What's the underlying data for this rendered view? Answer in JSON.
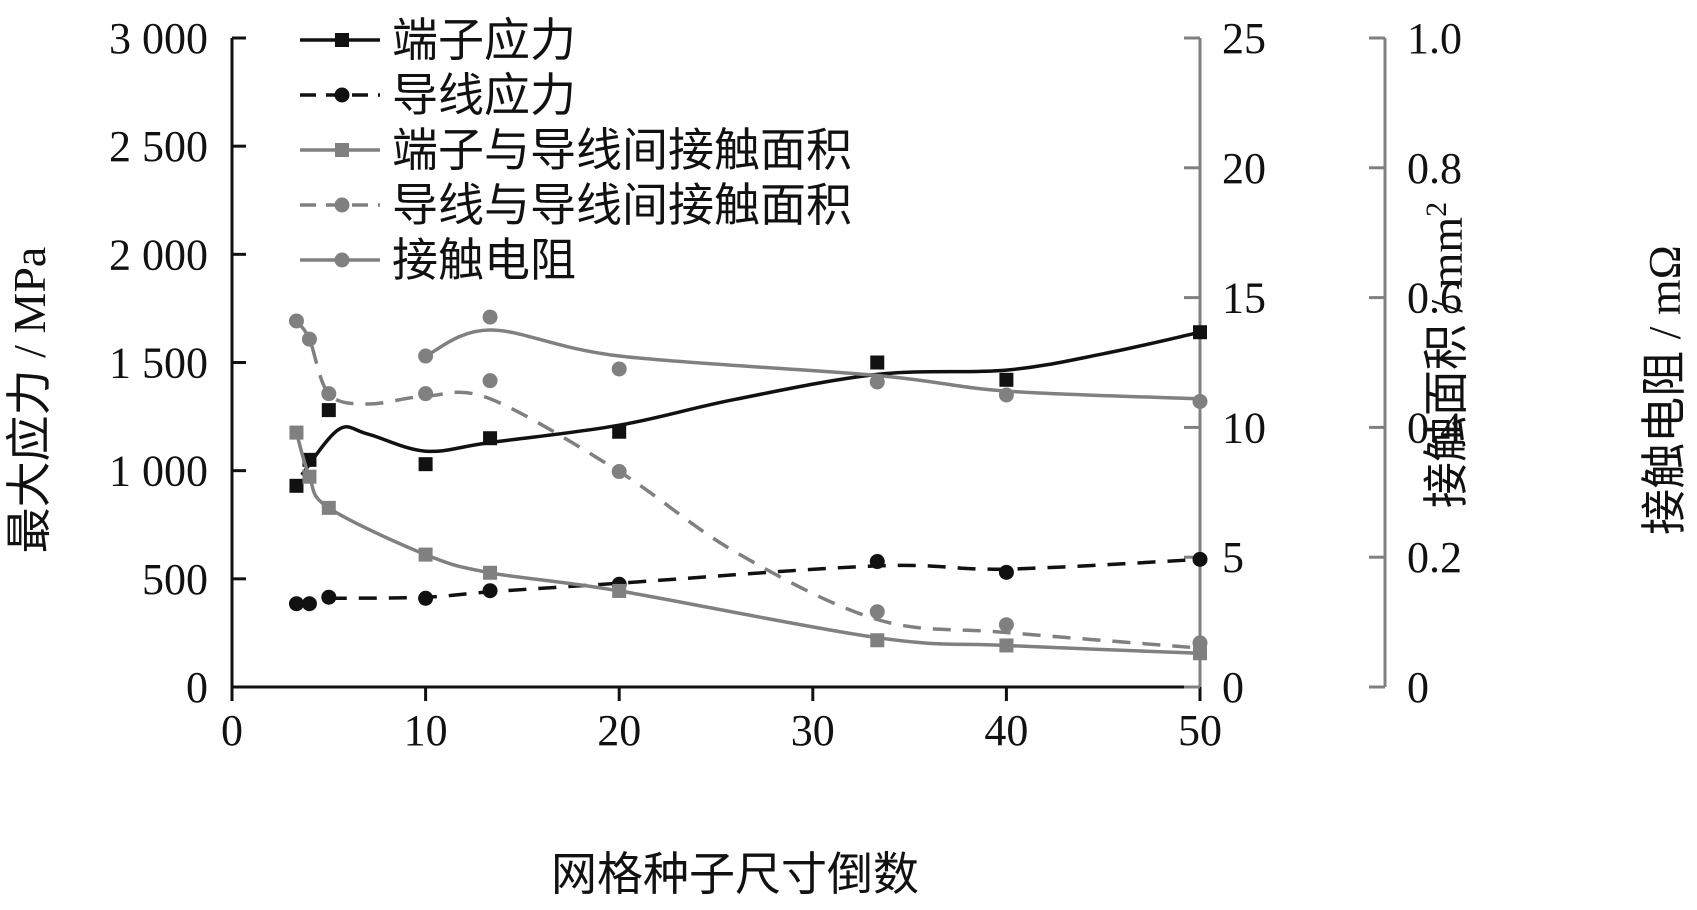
{
  "chart_data": {
    "type": "line",
    "xlabel": "网格种子尺寸倒数",
    "x_ticks": [
      "0",
      "10",
      "20",
      "30",
      "40",
      "50"
    ],
    "xlim": [
      0,
      50
    ],
    "axes": {
      "stress": {
        "label": "最大应力 / MPa",
        "ylim": [
          0,
          3000
        ],
        "ticks": [
          0,
          500,
          1000,
          1500,
          2000,
          2500,
          3000
        ],
        "tick_labels": [
          "0",
          "500",
          "1 000",
          "1 500",
          "2 000",
          "2 500",
          "3 000"
        ],
        "color": "#111111"
      },
      "area": {
        "label": "接触面积 / mm2",
        "ylim": [
          0,
          25
        ],
        "ticks": [
          0,
          5,
          10,
          15,
          20,
          25
        ],
        "tick_labels": [
          "0",
          "5",
          "10",
          "15",
          "20",
          "25"
        ],
        "color": "#808080"
      },
      "resistance": {
        "label": "接触电阻 / mΩ",
        "ylim": [
          0,
          1.0
        ],
        "ticks": [
          0,
          0.2,
          0.4,
          0.6,
          0.8,
          1.0
        ],
        "tick_labels": [
          "0",
          "0.2",
          "0.4",
          "0.6",
          "0.8",
          "1.0"
        ],
        "color": "#808080"
      }
    },
    "series": [
      {
        "name": "端子应力",
        "axis": "stress",
        "color": "#111111",
        "dash": false,
        "marker": "square",
        "points": [
          [
            3.33,
            930
          ],
          [
            4,
            1050
          ],
          [
            5,
            1280
          ],
          [
            10,
            1030
          ],
          [
            13.33,
            1150
          ],
          [
            20,
            1180
          ],
          [
            33.33,
            1500
          ],
          [
            40,
            1420
          ],
          [
            50,
            1640
          ]
        ],
        "curve": [
          [
            3.6,
            980
          ],
          [
            5.5,
            1190
          ],
          [
            7,
            1170
          ],
          [
            10,
            1090
          ],
          [
            13.33,
            1130
          ],
          [
            20,
            1210
          ],
          [
            26,
            1330
          ],
          [
            33.33,
            1445
          ],
          [
            40,
            1465
          ],
          [
            45,
            1540
          ],
          [
            50,
            1640
          ]
        ]
      },
      {
        "name": "导线应力",
        "axis": "stress",
        "color": "#111111",
        "dash": true,
        "marker": "circle",
        "points": [
          [
            3.33,
            385
          ],
          [
            4,
            385
          ],
          [
            5,
            415
          ],
          [
            10,
            410
          ],
          [
            13.33,
            445
          ],
          [
            20,
            475
          ],
          [
            33.33,
            580
          ],
          [
            40,
            530
          ],
          [
            50,
            590
          ]
        ],
        "curve": [
          [
            5,
            410
          ],
          [
            10,
            415
          ],
          [
            13.33,
            440
          ],
          [
            20,
            480
          ],
          [
            33.33,
            560
          ],
          [
            40,
            545
          ],
          [
            50,
            590
          ]
        ]
      },
      {
        "name": "端子与导线间接触面积",
        "axis": "area",
        "color": "#808080",
        "dash": false,
        "marker": "square",
        "points": [
          [
            3.33,
            9.8
          ],
          [
            4,
            8.1
          ],
          [
            5,
            6.9
          ],
          [
            10,
            5.1
          ],
          [
            13.33,
            4.4
          ],
          [
            20,
            3.7
          ],
          [
            33.33,
            1.8
          ],
          [
            40,
            1.6
          ],
          [
            50,
            1.3
          ]
        ],
        "curve": [
          [
            3.33,
            9.8
          ],
          [
            4,
            8.1
          ],
          [
            5,
            6.9
          ],
          [
            10,
            5.1
          ],
          [
            13.33,
            4.4
          ],
          [
            20,
            3.7
          ],
          [
            33.33,
            1.9
          ],
          [
            40,
            1.6
          ],
          [
            50,
            1.3
          ]
        ]
      },
      {
        "name": "导线与导线间接触面积",
        "axis": "area",
        "color": "#808080",
        "dash": true,
        "marker": "circle",
        "points": [
          [
            3.33,
            14.1
          ],
          [
            4,
            13.4
          ],
          [
            5,
            11.3
          ],
          [
            10,
            11.3
          ],
          [
            13.33,
            11.8
          ],
          [
            20,
            8.3
          ],
          [
            33.33,
            2.9
          ],
          [
            40,
            2.4
          ],
          [
            50,
            1.7
          ]
        ],
        "curve": [
          [
            3.33,
            14.1
          ],
          [
            4,
            13.4
          ],
          [
            5,
            11.3
          ],
          [
            7,
            10.9
          ],
          [
            10,
            11.2
          ],
          [
            13.33,
            11.1
          ],
          [
            20,
            8.3
          ],
          [
            26,
            5.2
          ],
          [
            33.33,
            2.6
          ],
          [
            40,
            2.1
          ],
          [
            50,
            1.5
          ]
        ]
      },
      {
        "name": "接触电阻",
        "axis": "resistance",
        "color": "#808080",
        "dash": false,
        "marker": "circle",
        "points": [
          [
            10,
            0.51
          ],
          [
            13.33,
            0.57
          ],
          [
            20,
            0.49
          ],
          [
            33.33,
            0.47
          ],
          [
            40,
            0.45
          ],
          [
            50,
            0.44
          ]
        ],
        "curve": [
          [
            10,
            0.51
          ],
          [
            13.33,
            0.55
          ],
          [
            20,
            0.51
          ],
          [
            33.33,
            0.48
          ],
          [
            40,
            0.456
          ],
          [
            50,
            0.444
          ]
        ]
      }
    ],
    "legend": {
      "position": "top-left"
    }
  }
}
